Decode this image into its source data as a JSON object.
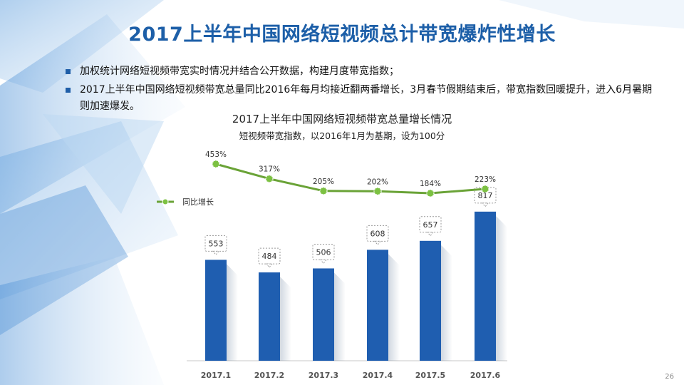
{
  "slide": {
    "title": "2017上半年中国网络短视频总计带宽爆炸性增长",
    "page_number": "26"
  },
  "bullets": [
    "加权统计网络短视频带宽实时情况并结合公开数据，构建月度带宽指数；",
    "2017上半年中国网络短视频带宽总量同比2016年每月均接近翻两番增长，3月春节假期结束后，带宽指数回暖提升，进入6月暑期则加速爆发。"
  ],
  "colors": {
    "title": "#1d5fa8",
    "bar": "#1f5eb0",
    "line": "#6aa337",
    "bullet_marker": "#1f5ea8"
  },
  "chart_data": {
    "type": "bar",
    "title": "2017上半年中国网络短视频带宽总量增长情况",
    "subtitle": "短视频带宽指数，以2016年1月为基期，设为100分",
    "categories": [
      "2017.1",
      "2017.2",
      "2017.3",
      "2017.4",
      "2017.5",
      "2017.6"
    ],
    "series": [
      {
        "values": [
          553,
          484,
          506,
          608,
          657,
          817
        ],
        "labels": [
          "553",
          "484",
          "506",
          "608",
          "657",
          "817"
        ]
      }
    ],
    "line_series": {
      "name": "同比增长",
      "values": [
        453,
        317,
        205,
        202,
        184,
        223
      ],
      "labels": [
        "453%",
        "317%",
        "205%",
        "202%",
        "184%",
        "223%"
      ]
    },
    "legend": "left",
    "grid": false
  }
}
